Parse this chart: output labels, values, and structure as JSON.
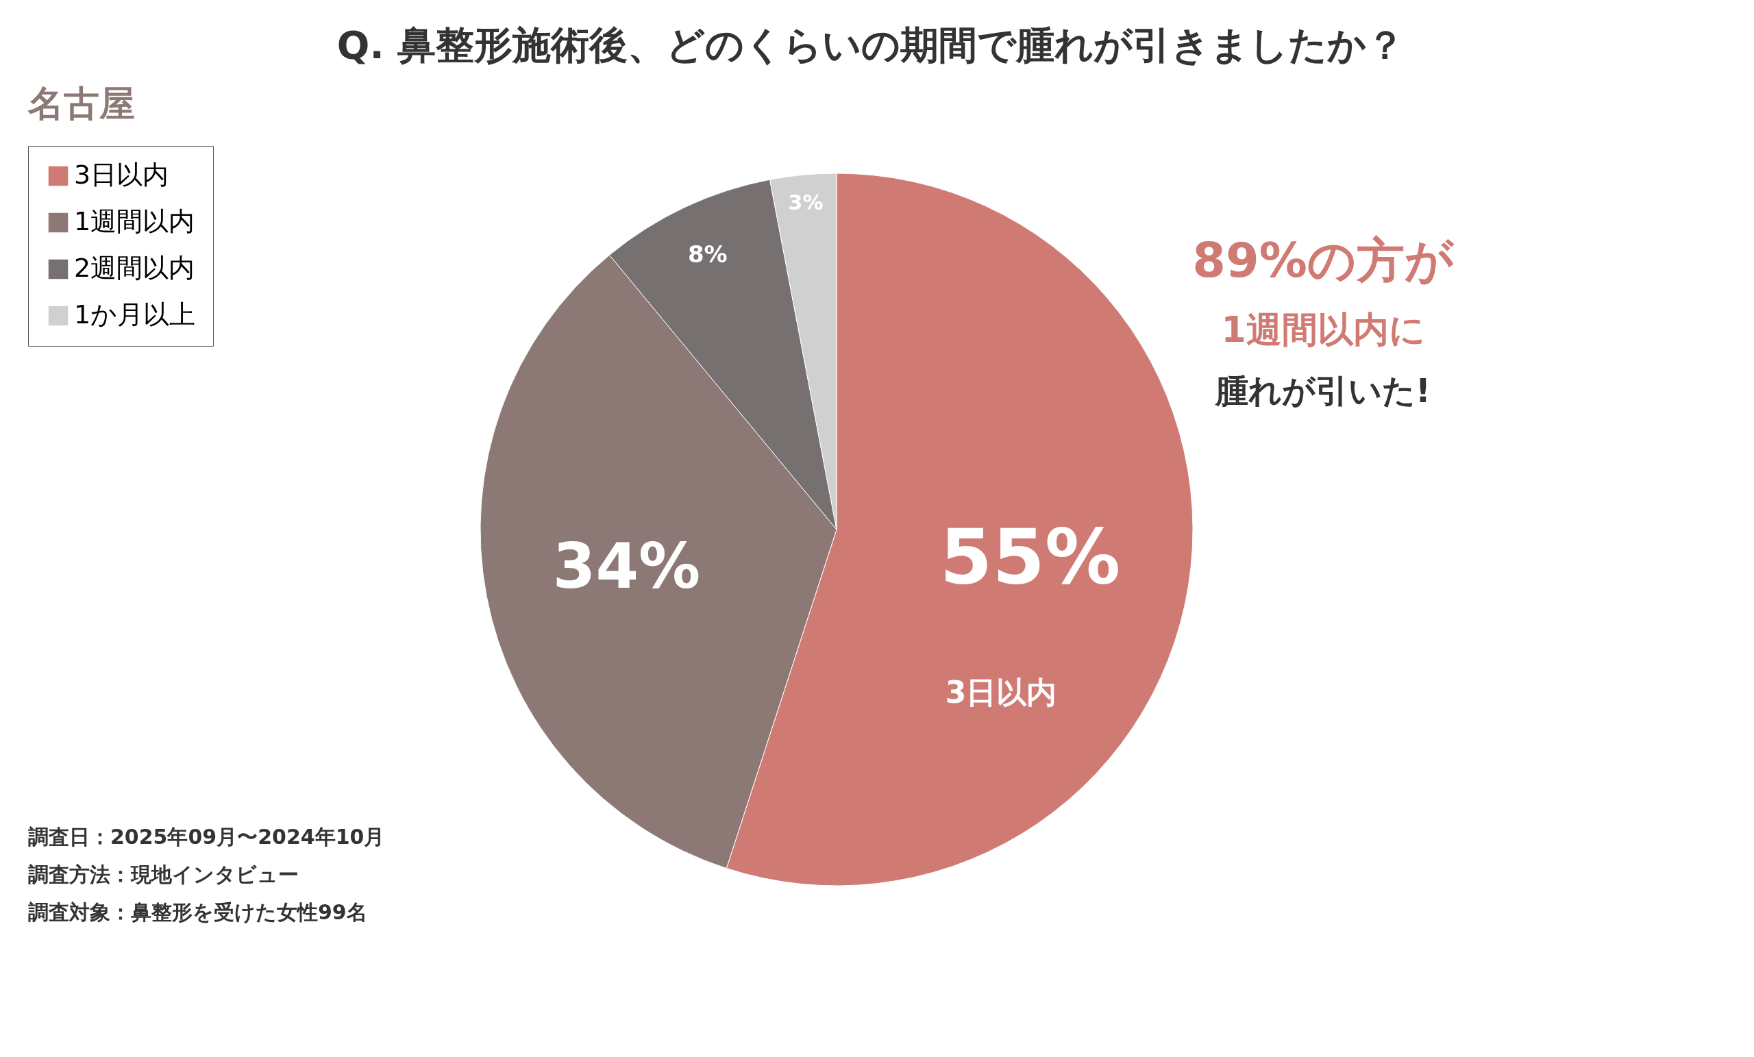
{
  "chart_data": {
    "type": "pie",
    "title": "Q. 鼻整形施術後、どのくらいの期間で腫れが引きましたか？",
    "categories": [
      "3日以内",
      "1週間以内",
      "2週間以内",
      "1か月以上"
    ],
    "values": [
      55,
      34,
      8,
      3
    ],
    "colors": [
      "#d07a74",
      "#8c7874",
      "#767070",
      "#d0d0d0"
    ],
    "value_labels": [
      "55%",
      "34%",
      "8%",
      "3%"
    ],
    "legend": "left",
    "annotations": [
      "名古屋",
      "3日以内",
      "89%の方が",
      "1週間以内に",
      "腫れが引いた!",
      "調査日：2025年09月〜2024年10月",
      "調査方法：現地インタビュー",
      "調査対象：鼻整形を受けた女性99名"
    ]
  }
}
